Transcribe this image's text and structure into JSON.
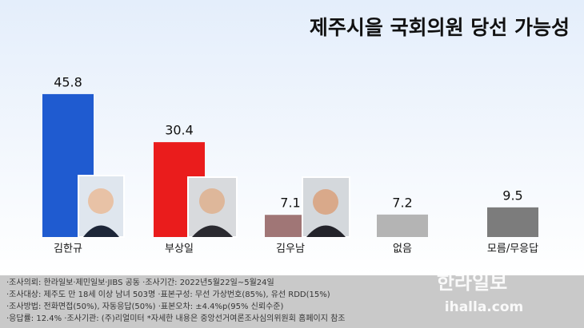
{
  "chart_data": {
    "type": "bar",
    "title": "제주시을 국회의원 당선 가능성",
    "categories": [
      "김한규",
      "부상일",
      "김우남",
      "없음",
      "모름/무응답"
    ],
    "values": [
      45.8,
      30.4,
      7.1,
      7.2,
      9.5
    ],
    "colors": [
      "#1f5bd0",
      "#ea1c1c",
      "#a07676",
      "#b4b4b4",
      "#7c7c7c"
    ]
  },
  "notes": [
    "·조사의뢰: 한라일보·제민일보·JIBS 공동  ·조사기간: 2022년5월22일~5월24일",
    "·조사대상: 제주도 만 18세 이상 남녀 503명  ·표본구성: 무선 가상번호(85%), 유선 RDD(15%)",
    "·조사방법: 전화면접(50%), 자동응답(50%)  ·표본오차: ±4.4%p(95% 신뢰수준)",
    "·응답률: 12.4%  ·조사기관: (주)리얼미터  *자세한 내용은 중앙선거여론조사심의위원회 홈페이지 참조"
  ],
  "logo": {
    "name": "한라일보",
    "url": "ihalla.com"
  }
}
